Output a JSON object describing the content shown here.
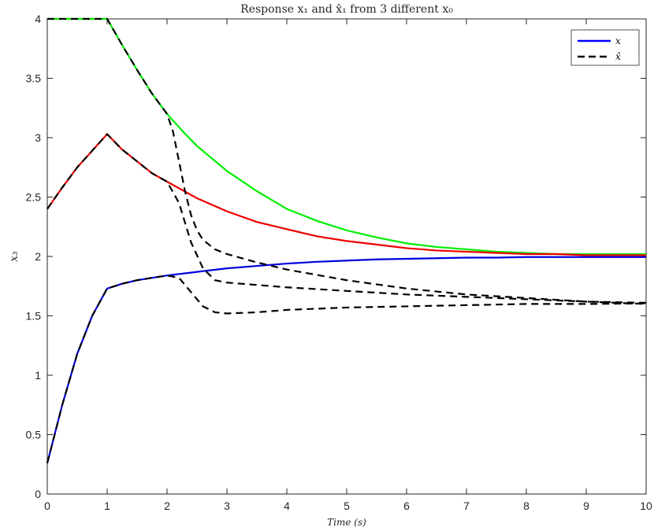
{
  "chart_data": {
    "type": "line",
    "title": "Response x₁ and x̂₁ from 3 different x₀",
    "xlabel": "Time (s)",
    "ylabel": "x₃",
    "xlim": [
      0,
      10
    ],
    "ylim": [
      0,
      4
    ],
    "xticks": [
      0,
      1,
      2,
      3,
      4,
      5,
      6,
      7,
      8,
      9,
      10
    ],
    "yticks": [
      0,
      0.5,
      1,
      1.5,
      2,
      2.5,
      3,
      3.5,
      4
    ],
    "grid": false,
    "legend_position": "top-right",
    "legend": [
      {
        "label": "x",
        "color": "#0000ff",
        "style": "solid"
      },
      {
        "label": "x̂",
        "color": "#000000",
        "style": "dashed"
      }
    ],
    "series": [
      {
        "color": "#00ee00",
        "style": "solid",
        "x": [
          0,
          1,
          1.25,
          1.5,
          1.75,
          2,
          2.25,
          2.5,
          3,
          3.5,
          4,
          4.5,
          5,
          5.5,
          6,
          6.5,
          7,
          7.5,
          8,
          8.5,
          9,
          9.5,
          10
        ],
        "y": [
          4,
          4,
          3.78,
          3.57,
          3.37,
          3.2,
          3.06,
          2.93,
          2.72,
          2.55,
          2.4,
          2.3,
          2.22,
          2.16,
          2.11,
          2.08,
          2.06,
          2.04,
          2.03,
          2.02,
          2.02,
          2.02,
          2.02
        ]
      },
      {
        "color": "#ee0000",
        "style": "solid",
        "x": [
          0,
          0.25,
          0.5,
          0.75,
          1,
          1.25,
          1.5,
          1.75,
          2,
          2.5,
          3,
          3.5,
          4,
          4.5,
          5,
          5.5,
          6,
          6.5,
          7,
          7.5,
          8,
          8.5,
          9,
          9.5,
          10
        ],
        "y": [
          2.4,
          2.58,
          2.75,
          2.89,
          3.03,
          2.9,
          2.8,
          2.7,
          2.63,
          2.49,
          2.38,
          2.29,
          2.23,
          2.17,
          2.13,
          2.1,
          2.07,
          2.05,
          2.04,
          2.03,
          2.02,
          2.02,
          2.01,
          2.01,
          2.01
        ]
      },
      {
        "color": "#0000dd",
        "style": "solid",
        "x": [
          0,
          0.25,
          0.5,
          0.75,
          1,
          1.25,
          1.5,
          1.75,
          2,
          2.5,
          3,
          3.5,
          4,
          4.5,
          5,
          5.5,
          6,
          6.5,
          7,
          7.5,
          8,
          8.5,
          9,
          9.5,
          10
        ],
        "y": [
          0.26,
          0.75,
          1.18,
          1.5,
          1.73,
          1.77,
          1.8,
          1.82,
          1.84,
          1.87,
          1.9,
          1.92,
          1.94,
          1.955,
          1.965,
          1.975,
          1.98,
          1.985,
          1.99,
          1.99,
          1.995,
          1.995,
          1.995,
          1.995,
          1.995
        ]
      },
      {
        "color": "#000000",
        "style": "dashed",
        "x": [
          0,
          1,
          1.25,
          1.5,
          1.75,
          2,
          2.1,
          2.2,
          2.3,
          2.4,
          2.5,
          2.6,
          2.8,
          3,
          3.5,
          4,
          5,
          6,
          7,
          8,
          9,
          10
        ],
        "y": [
          4,
          4,
          3.78,
          3.57,
          3.37,
          3.2,
          3.05,
          2.8,
          2.55,
          2.35,
          2.22,
          2.14,
          2.06,
          2.02,
          1.95,
          1.89,
          1.8,
          1.73,
          1.68,
          1.65,
          1.62,
          1.6
        ]
      },
      {
        "color": "#000000",
        "style": "dashed",
        "x": [
          0,
          0.25,
          0.5,
          0.75,
          1,
          1.25,
          1.5,
          1.75,
          2,
          2.2,
          2.4,
          2.6,
          2.8,
          3,
          3.5,
          4,
          5,
          6,
          7,
          8,
          9,
          10
        ],
        "y": [
          2.4,
          2.58,
          2.75,
          2.89,
          3.03,
          2.9,
          2.8,
          2.7,
          2.63,
          2.45,
          2.12,
          1.9,
          1.8,
          1.78,
          1.76,
          1.74,
          1.71,
          1.68,
          1.66,
          1.64,
          1.62,
          1.61
        ]
      },
      {
        "color": "#000000",
        "style": "dashed",
        "x": [
          0,
          0.25,
          0.5,
          0.75,
          1,
          1.25,
          1.5,
          1.75,
          2,
          2.2,
          2.4,
          2.6,
          2.8,
          3,
          3.5,
          4,
          5,
          6,
          7,
          8,
          9,
          10
        ],
        "y": [
          0.26,
          0.75,
          1.18,
          1.5,
          1.73,
          1.77,
          1.8,
          1.82,
          1.84,
          1.82,
          1.7,
          1.58,
          1.53,
          1.52,
          1.53,
          1.55,
          1.57,
          1.58,
          1.59,
          1.6,
          1.6,
          1.605
        ]
      }
    ]
  }
}
